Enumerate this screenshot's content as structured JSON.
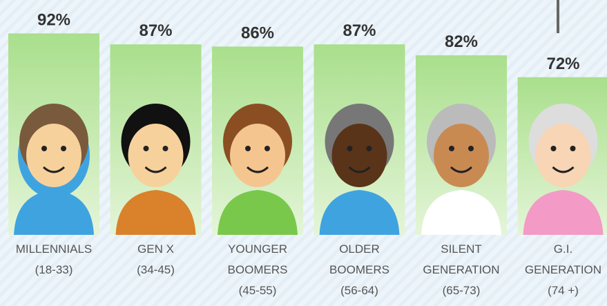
{
  "chart_data": {
    "type": "bar",
    "categories": [
      [
        "MILLENNIALS",
        "(18-33)"
      ],
      [
        "GEN X",
        "(34-45)"
      ],
      [
        "YOUNGER",
        "BOOMERS",
        "(45-55)"
      ],
      [
        "OLDER",
        "BOOMERS",
        "(56-64)"
      ],
      [
        "SILENT",
        "GENERATION",
        "(65-73)"
      ],
      [
        "G.I.",
        "GENERATION",
        "(74 +)"
      ]
    ],
    "values": [
      92,
      87,
      86,
      87,
      82,
      72
    ],
    "value_labels": [
      "92%",
      "87%",
      "86%",
      "87%",
      "82%",
      "72%"
    ],
    "color": "#a9df8c",
    "ylim": [
      0,
      100
    ]
  }
}
